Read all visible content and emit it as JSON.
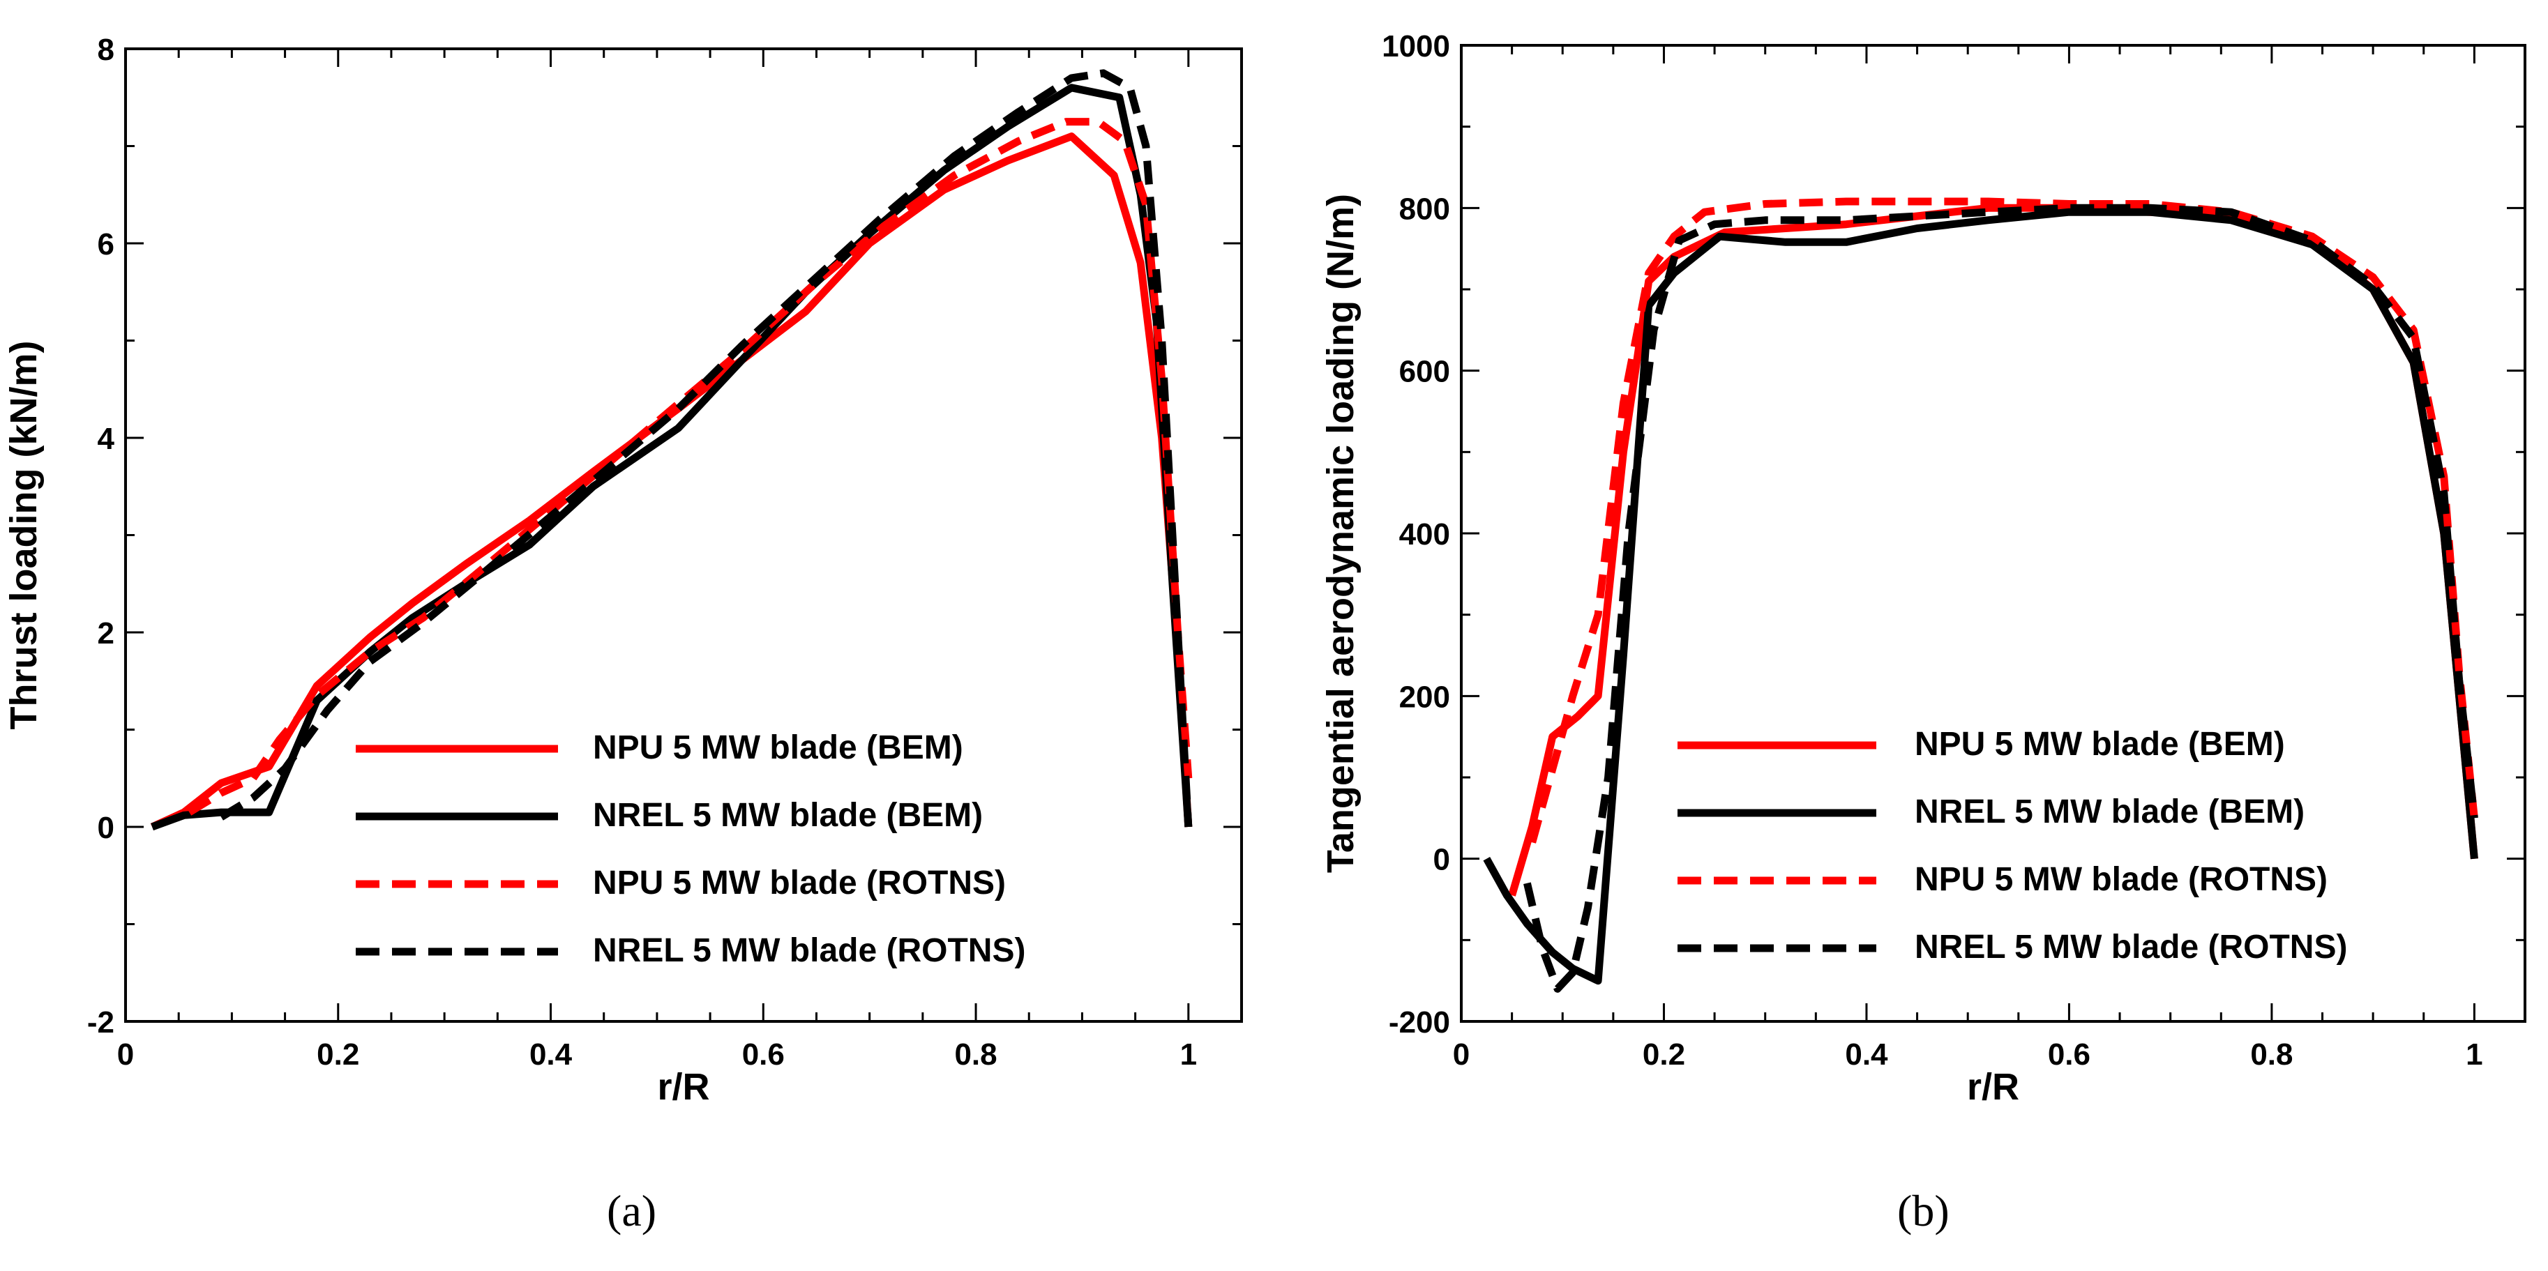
{
  "chart_data": [
    {
      "type": "line",
      "panel_label": "(a)",
      "xlabel": "r/R",
      "ylabel": "Thrust loading (kN/m)",
      "xlim": [
        0,
        1.05
      ],
      "ylim": [
        -2,
        8
      ],
      "xticks": [
        "0",
        "0.2",
        "0.4",
        "0.6",
        "0.8",
        "1"
      ],
      "xtick_values": [
        0,
        0.2,
        0.4,
        0.6,
        0.8,
        1
      ],
      "yticks": [
        "-2",
        "0",
        "2",
        "4",
        "6",
        "8"
      ],
      "ytick_values": [
        -2,
        0,
        2,
        4,
        6,
        8
      ],
      "legend_position": "bottom-right",
      "series": [
        {
          "name": "NPU 5 MW blade (BEM)",
          "color": "#ff0000",
          "style": "solid",
          "x": [
            0.025,
            0.055,
            0.09,
            0.135,
            0.18,
            0.23,
            0.27,
            0.32,
            0.38,
            0.44,
            0.52,
            0.58,
            0.64,
            0.7,
            0.77,
            0.83,
            0.89,
            0.93,
            0.955,
            0.975,
            0.99,
            1.0
          ],
          "y": [
            0,
            0.15,
            0.45,
            0.62,
            1.45,
            1.95,
            2.3,
            2.7,
            3.15,
            3.65,
            4.3,
            4.8,
            5.3,
            6.0,
            6.55,
            6.85,
            7.1,
            6.7,
            5.8,
            4.0,
            1.8,
            0
          ]
        },
        {
          "name": "NREL 5 MW blade (BEM)",
          "color": "#000000",
          "style": "solid",
          "x": [
            0.025,
            0.055,
            0.09,
            0.135,
            0.18,
            0.23,
            0.27,
            0.32,
            0.38,
            0.44,
            0.52,
            0.58,
            0.64,
            0.7,
            0.77,
            0.83,
            0.89,
            0.935,
            0.955,
            0.97,
            0.985,
            1.0
          ],
          "y": [
            0,
            0.12,
            0.15,
            0.15,
            1.3,
            1.8,
            2.15,
            2.5,
            2.9,
            3.5,
            4.1,
            4.8,
            5.5,
            6.1,
            6.75,
            7.2,
            7.6,
            7.5,
            6.5,
            5.2,
            2.5,
            0
          ]
        },
        {
          "name": "NPU 5 MW blade (ROTNS)",
          "color": "#ff0000",
          "style": "dashed",
          "x": [
            0.06,
            0.09,
            0.12,
            0.145,
            0.18,
            0.23,
            0.28,
            0.33,
            0.39,
            0.45,
            0.52,
            0.58,
            0.65,
            0.71,
            0.78,
            0.84,
            0.885,
            0.915,
            0.94,
            0.96,
            0.975,
            0.99,
            1.0
          ],
          "y": [
            0.15,
            0.35,
            0.5,
            0.9,
            1.35,
            1.8,
            2.15,
            2.6,
            3.15,
            3.7,
            4.35,
            4.9,
            5.6,
            6.15,
            6.7,
            7.05,
            7.25,
            7.25,
            7.05,
            6.4,
            4.6,
            2.0,
            0.5
          ]
        },
        {
          "name": "NREL 5 MW blade (ROTNS)",
          "color": "#000000",
          "style": "dashed",
          "x": [
            0.09,
            0.12,
            0.15,
            0.19,
            0.23,
            0.28,
            0.33,
            0.39,
            0.45,
            0.52,
            0.58,
            0.65,
            0.71,
            0.78,
            0.84,
            0.89,
            0.92,
            0.945,
            0.96,
            0.975,
            0.99,
            1.0
          ],
          "y": [
            0.1,
            0.3,
            0.6,
            1.2,
            1.7,
            2.1,
            2.55,
            3.1,
            3.65,
            4.3,
            4.95,
            5.65,
            6.25,
            6.9,
            7.35,
            7.7,
            7.75,
            7.6,
            7.0,
            5.0,
            2.0,
            0
          ]
        }
      ]
    },
    {
      "type": "line",
      "panel_label": "(b)",
      "xlabel": "r/R",
      "ylabel": "Tangential aerodynamic loading (N/m)",
      "xlim": [
        0,
        1.05
      ],
      "ylim": [
        -200,
        1000
      ],
      "xticks": [
        "0",
        "0.2",
        "0.4",
        "0.6",
        "0.8",
        "1"
      ],
      "xtick_values": [
        0,
        0.2,
        0.4,
        0.6,
        0.8,
        1
      ],
      "yticks": [
        "-200",
        "0",
        "200",
        "400",
        "600",
        "800",
        "1000"
      ],
      "ytick_values": [
        -200,
        0,
        200,
        400,
        600,
        800,
        1000
      ],
      "legend_position": "bottom-right",
      "series": [
        {
          "name": "NPU 5 MW blade (BEM)",
          "color": "#ff0000",
          "style": "solid",
          "x": [
            0.05,
            0.07,
            0.09,
            0.115,
            0.135,
            0.16,
            0.185,
            0.21,
            0.26,
            0.32,
            0.38,
            0.45,
            0.52,
            0.6,
            0.68,
            0.76,
            0.84,
            0.9,
            0.94,
            0.97,
            0.985,
            1.0
          ],
          "y": [
            -45,
            40,
            150,
            175,
            200,
            500,
            710,
            740,
            770,
            775,
            780,
            790,
            800,
            800,
            795,
            790,
            760,
            700,
            610,
            400,
            200,
            0
          ]
        },
        {
          "name": "NREL 5 MW blade (BEM)",
          "color": "#000000",
          "style": "solid",
          "x": [
            0.025,
            0.045,
            0.065,
            0.09,
            0.11,
            0.135,
            0.16,
            0.185,
            0.21,
            0.255,
            0.32,
            0.38,
            0.45,
            0.52,
            0.6,
            0.68,
            0.76,
            0.84,
            0.9,
            0.94,
            0.97,
            0.985,
            1.0
          ],
          "y": [
            0,
            -45,
            -80,
            -115,
            -135,
            -150,
            250,
            680,
            720,
            765,
            758,
            758,
            775,
            785,
            795,
            795,
            785,
            755,
            700,
            610,
            400,
            200,
            0
          ]
        },
        {
          "name": "NPU 5 MW blade (ROTNS)",
          "color": "#ff0000",
          "style": "dashed",
          "x": [
            0.07,
            0.09,
            0.11,
            0.135,
            0.16,
            0.185,
            0.21,
            0.24,
            0.3,
            0.38,
            0.45,
            0.52,
            0.6,
            0.68,
            0.76,
            0.84,
            0.9,
            0.94,
            0.97,
            0.985,
            1.0
          ],
          "y": [
            20,
            110,
            200,
            300,
            560,
            720,
            765,
            795,
            805,
            808,
            808,
            808,
            805,
            805,
            795,
            765,
            715,
            650,
            470,
            230,
            50
          ]
        },
        {
          "name": "NREL 5 MW blade (ROTNS)",
          "color": "#000000",
          "style": "dashed",
          "x": [
            0.065,
            0.08,
            0.095,
            0.11,
            0.125,
            0.145,
            0.165,
            0.19,
            0.215,
            0.25,
            0.3,
            0.38,
            0.45,
            0.52,
            0.6,
            0.68,
            0.76,
            0.84,
            0.9,
            0.94,
            0.97,
            0.985,
            1.0
          ],
          "y": [
            -30,
            -110,
            -160,
            -140,
            -60,
            100,
            400,
            650,
            760,
            780,
            785,
            785,
            790,
            795,
            800,
            800,
            795,
            760,
            705,
            640,
            450,
            220,
            50
          ]
        }
      ]
    }
  ]
}
